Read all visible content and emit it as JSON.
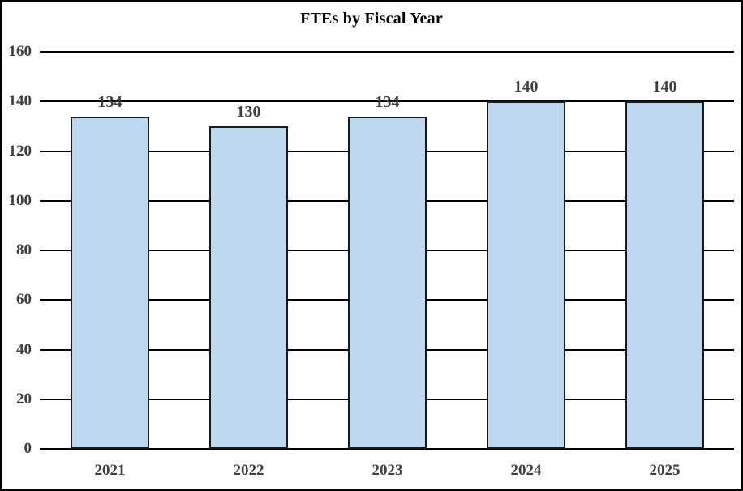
{
  "chart_data": {
    "type": "bar",
    "title": "FTEs by Fiscal Year",
    "categories": [
      "2021",
      "2022",
      "2023",
      "2024",
      "2025"
    ],
    "values": [
      134,
      130,
      134,
      140,
      140
    ],
    "data_labels": [
      "134",
      "130",
      "134",
      "140",
      "140"
    ],
    "xlabel": "",
    "ylabel": "",
    "ylim": [
      0,
      160
    ],
    "yticks": [
      0,
      20,
      40,
      60,
      80,
      100,
      120,
      140,
      160
    ],
    "grid": true,
    "legend": "none",
    "colors": {
      "bar_fill": "#bdd7ee",
      "bar_border": "#1a1a1a",
      "gridline": "#000000",
      "label_text": "#404040",
      "title_text": "#000000",
      "background": "#ffffff",
      "frame_border": "#000000"
    }
  }
}
